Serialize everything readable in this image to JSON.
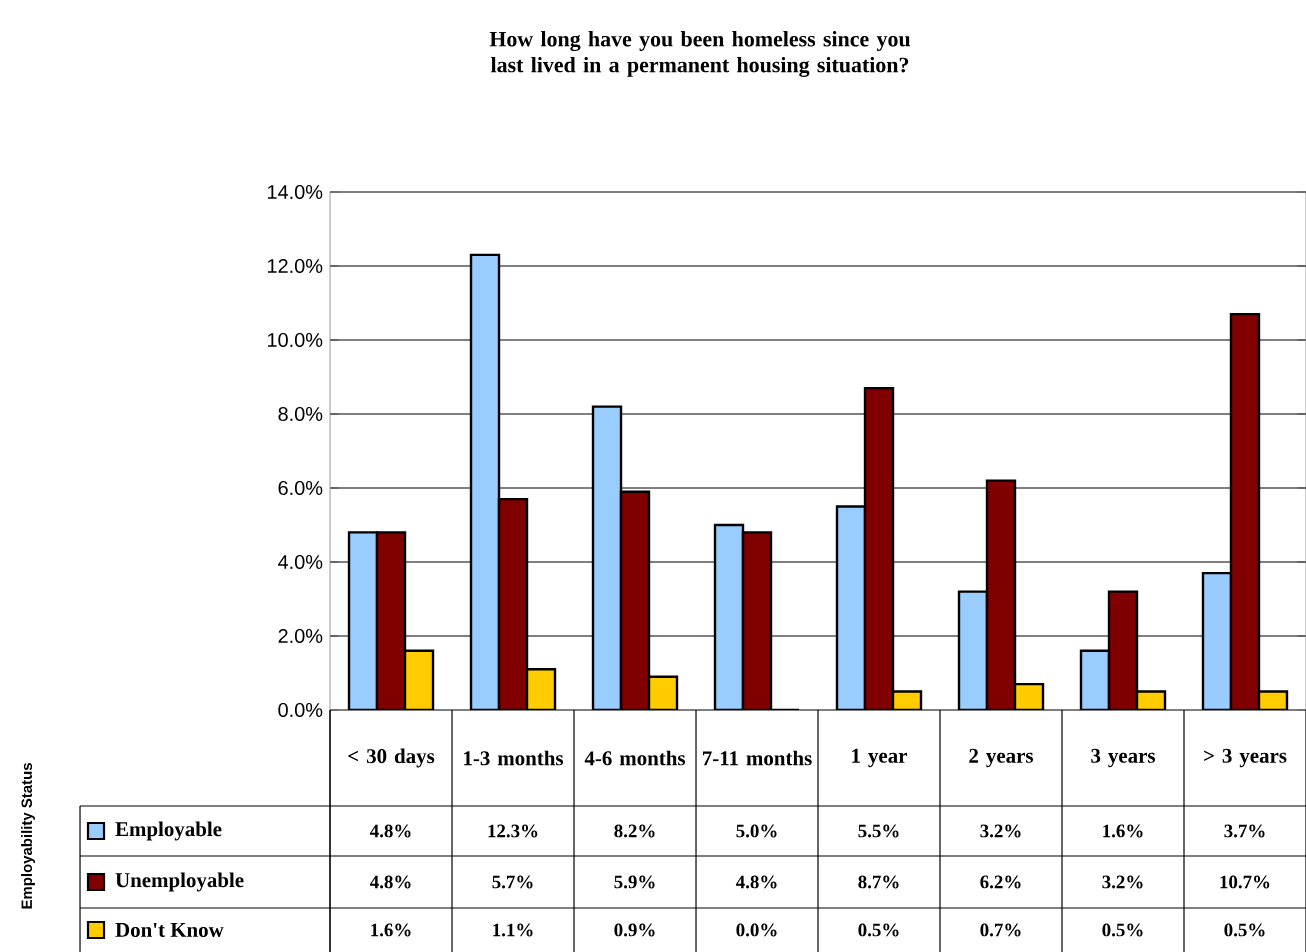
{
  "chart_data": {
    "type": "bar",
    "title": "How long have you been homeless since you last lived in a permanent housing situation?",
    "legend_title": "Employability Status",
    "categories": [
      "< 30 days",
      "1-3 months",
      "4-6 months",
      "7-11 months",
      "1 year",
      "2 years",
      "3 years",
      "> 3 years"
    ],
    "series": [
      {
        "name": "Employable",
        "color": "#99ccff",
        "values": [
          4.8,
          12.3,
          8.2,
          5.0,
          5.5,
          3.2,
          1.6,
          3.7
        ],
        "value_labels": [
          "4.8%",
          "12.3%",
          "8.2%",
          "5.0%",
          "5.5%",
          "3.2%",
          "1.6%",
          "3.7%"
        ]
      },
      {
        "name": "Unemployable",
        "color": "#800000",
        "values": [
          4.8,
          5.7,
          5.9,
          4.8,
          8.7,
          6.2,
          3.2,
          10.7
        ],
        "value_labels": [
          "4.8%",
          "5.7%",
          "5.9%",
          "4.8%",
          "8.7%",
          "6.2%",
          "3.2%",
          "10.7%"
        ]
      },
      {
        "name": "Don't Know",
        "color": "#ffcc00",
        "values": [
          1.6,
          1.1,
          0.9,
          0.0,
          0.5,
          0.7,
          0.5,
          0.5
        ],
        "value_labels": [
          "1.6%",
          "1.1%",
          "0.9%",
          "0.0%",
          "0.5%",
          "0.7%",
          "0.5%",
          "0.5%"
        ]
      }
    ],
    "ylim": [
      0,
      14
    ],
    "yticks": [
      {
        "value": 0,
        "label": "0.0%"
      },
      {
        "value": 2,
        "label": "2.0%"
      },
      {
        "value": 4,
        "label": "4.0%"
      },
      {
        "value": 6,
        "label": "6.0%"
      },
      {
        "value": 8,
        "label": "8.0%"
      },
      {
        "value": 10,
        "label": "10.0%"
      },
      {
        "value": 12,
        "label": "12.0%"
      },
      {
        "value": 14,
        "label": "14.0%"
      }
    ],
    "grid": "y",
    "legend": "bottom"
  }
}
